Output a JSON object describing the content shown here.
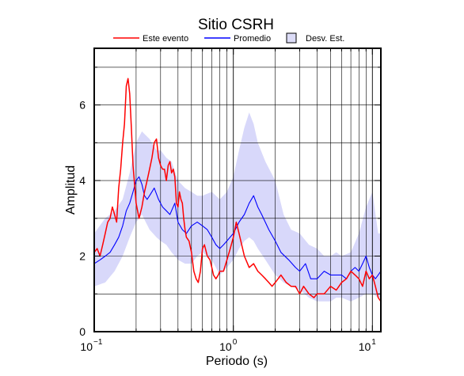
{
  "chart_data": {
    "type": "line",
    "title": "Sitio CSRH",
    "xlabel": "Periodo (s)",
    "ylabel": "Amplitud",
    "x_scale": "log",
    "xlim": [
      0.1,
      11.5
    ],
    "ylim": [
      0,
      7.5
    ],
    "x_ticks": [
      {
        "base": "10",
        "exp": "−1",
        "value": 0.1
      },
      {
        "base": "10",
        "exp": "0",
        "value": 1
      },
      {
        "base": "10",
        "exp": "1",
        "value": 10
      }
    ],
    "y_ticks": [
      0,
      2,
      4,
      6
    ],
    "grid": true,
    "legend_position": "top",
    "colors": {
      "event": "#ff0000",
      "mean": "#0000ff",
      "std_fill": "#d8d8fa",
      "std_legend_fill": "#dcdcf7"
    },
    "legend": [
      {
        "label": "Este evento",
        "kind": "line",
        "color": "#ff0000"
      },
      {
        "label": "Promedio",
        "kind": "line",
        "color": "#0000ff"
      },
      {
        "label": "Desv. Est.",
        "kind": "box",
        "color": "#dcdcf7"
      }
    ],
    "series": [
      {
        "name": "Este evento",
        "color": "#ff0000",
        "x": [
          0.1,
          0.105,
          0.11,
          0.115,
          0.12,
          0.125,
          0.13,
          0.135,
          0.14,
          0.145,
          0.15,
          0.155,
          0.16,
          0.165,
          0.17,
          0.175,
          0.18,
          0.185,
          0.19,
          0.2,
          0.21,
          0.22,
          0.23,
          0.24,
          0.25,
          0.26,
          0.27,
          0.28,
          0.29,
          0.3,
          0.31,
          0.32,
          0.33,
          0.34,
          0.35,
          0.36,
          0.37,
          0.38,
          0.39,
          0.4,
          0.41,
          0.42,
          0.43,
          0.44,
          0.45,
          0.46,
          0.48,
          0.5,
          0.52,
          0.54,
          0.56,
          0.58,
          0.6,
          0.62,
          0.65,
          0.68,
          0.7,
          0.72,
          0.75,
          0.78,
          0.8,
          0.85,
          0.9,
          0.95,
          1.0,
          1.05,
          1.1,
          1.2,
          1.3,
          1.4,
          1.5,
          1.6,
          1.7,
          1.8,
          1.9,
          2.0,
          2.2,
          2.4,
          2.6,
          2.8,
          3.0,
          3.2,
          3.5,
          3.8,
          4.0,
          4.5,
          5.0,
          5.5,
          6.0,
          6.5,
          7.0,
          7.5,
          8.0,
          8.5,
          9.0,
          9.5,
          10.0,
          10.5,
          11.0,
          11.5
        ],
        "values": [
          2.1,
          2.2,
          2.0,
          2.3,
          2.6,
          2.9,
          3.0,
          3.3,
          3.1,
          2.9,
          3.8,
          4.3,
          5.0,
          5.5,
          6.5,
          6.7,
          6.3,
          5.4,
          4.4,
          3.4,
          3.0,
          3.3,
          3.7,
          4.0,
          4.3,
          4.6,
          5.0,
          5.1,
          4.6,
          4.4,
          4.3,
          4.3,
          4.0,
          4.4,
          4.5,
          4.2,
          4.3,
          4.1,
          3.4,
          3.3,
          3.7,
          3.5,
          3.4,
          3.0,
          2.7,
          2.5,
          2.4,
          2.1,
          1.6,
          1.4,
          1.3,
          1.6,
          2.2,
          2.3,
          2.0,
          1.9,
          1.7,
          1.5,
          1.4,
          1.5,
          1.6,
          1.6,
          1.9,
          2.2,
          2.5,
          2.9,
          2.6,
          2.0,
          1.7,
          1.8,
          1.6,
          1.5,
          1.4,
          1.3,
          1.2,
          1.3,
          1.5,
          1.3,
          1.2,
          1.2,
          1.0,
          1.2,
          1.0,
          0.9,
          1.0,
          1.0,
          1.2,
          1.1,
          1.3,
          1.4,
          1.6,
          1.5,
          1.4,
          1.2,
          1.6,
          1.4,
          1.5,
          1.2,
          0.9,
          0.8
        ]
      },
      {
        "name": "Promedio",
        "color": "#0000ff",
        "x": [
          0.1,
          0.11,
          0.12,
          0.13,
          0.14,
          0.15,
          0.16,
          0.17,
          0.18,
          0.19,
          0.2,
          0.21,
          0.22,
          0.23,
          0.24,
          0.25,
          0.27,
          0.29,
          0.31,
          0.33,
          0.35,
          0.38,
          0.4,
          0.43,
          0.46,
          0.5,
          0.55,
          0.6,
          0.65,
          0.7,
          0.75,
          0.8,
          0.85,
          0.9,
          1.0,
          1.1,
          1.2,
          1.3,
          1.4,
          1.5,
          1.6,
          1.8,
          2.0,
          2.2,
          2.5,
          2.8,
          3.0,
          3.3,
          3.6,
          4.0,
          4.5,
          5.0,
          5.5,
          6.0,
          6.5,
          7.0,
          7.5,
          8.0,
          8.5,
          9.0,
          9.5,
          10.0,
          10.5,
          11.0,
          11.5
        ],
        "values": [
          1.8,
          1.9,
          2.0,
          2.1,
          2.3,
          2.5,
          2.8,
          3.2,
          3.4,
          3.7,
          4.0,
          4.1,
          3.9,
          3.6,
          3.5,
          3.6,
          3.8,
          3.5,
          3.3,
          3.2,
          3.1,
          3.4,
          2.9,
          2.7,
          2.6,
          2.8,
          2.9,
          2.8,
          2.7,
          2.5,
          2.3,
          2.2,
          2.3,
          2.4,
          2.6,
          2.9,
          3.1,
          3.4,
          3.6,
          3.3,
          3.1,
          2.7,
          2.4,
          2.1,
          1.9,
          1.7,
          1.6,
          1.8,
          1.4,
          1.4,
          1.6,
          1.5,
          1.5,
          1.5,
          1.4,
          1.6,
          1.7,
          1.6,
          1.8,
          2.0,
          1.7,
          1.5,
          1.4,
          1.5,
          1.6
        ]
      }
    ],
    "band": {
      "name": "Desv. Est.",
      "color": "#d8d8fa",
      "x": [
        0.1,
        0.12,
        0.14,
        0.16,
        0.18,
        0.2,
        0.22,
        0.25,
        0.28,
        0.3,
        0.33,
        0.36,
        0.4,
        0.45,
        0.5,
        0.55,
        0.6,
        0.7,
        0.8,
        0.9,
        1.0,
        1.1,
        1.2,
        1.3,
        1.4,
        1.5,
        1.7,
        2.0,
        2.3,
        2.6,
        3.0,
        3.5,
        4.0,
        4.5,
        5.0,
        5.5,
        6.0,
        7.0,
        8.0,
        9.0,
        10.0,
        11.0,
        11.5
      ],
      "upper": [
        2.6,
        3.0,
        3.2,
        3.5,
        4.2,
        5.0,
        5.3,
        5.1,
        4.8,
        4.8,
        4.6,
        4.5,
        4.0,
        3.8,
        3.7,
        3.6,
        3.6,
        3.7,
        3.5,
        3.7,
        4.1,
        4.8,
        5.4,
        5.8,
        5.5,
        5.0,
        4.5,
        4.0,
        3.1,
        2.7,
        2.6,
        2.3,
        2.2,
        2.0,
        2.0,
        2.1,
        2.0,
        2.1,
        2.6,
        3.3,
        3.7,
        2.6,
        2.6
      ],
      "lower": [
        1.2,
        1.3,
        1.6,
        2.0,
        2.5,
        2.9,
        3.1,
        2.7,
        2.5,
        2.4,
        2.3,
        2.1,
        1.9,
        1.8,
        1.8,
        2.0,
        2.1,
        1.9,
        1.5,
        1.7,
        1.9,
        2.2,
        2.4,
        2.5,
        2.4,
        2.2,
        1.9,
        1.5,
        1.3,
        1.2,
        1.1,
        0.9,
        0.8,
        0.8,
        0.8,
        0.9,
        0.9,
        0.8,
        0.9,
        1.0,
        1.0,
        0.9,
        0.9
      ]
    }
  }
}
